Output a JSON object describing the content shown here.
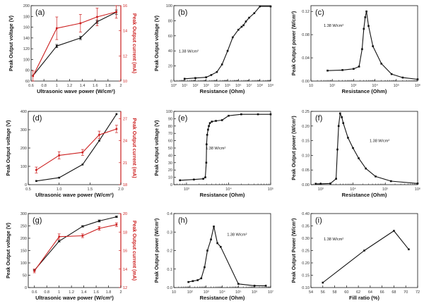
{
  "colors": {
    "black": "#111111",
    "red": "#cc1f1f"
  },
  "chart_data": [
    {
      "id": "a",
      "panel_label": "(a)",
      "type": "line",
      "xlabel": "Ultrasonic wave power (W/cm²)",
      "ylabel": "Peak Output voltage (V)",
      "ylabel_right": "Peak Output current (mA)",
      "xlim": [
        0.6,
        2.0
      ],
      "ylim": [
        60,
        200
      ],
      "ylim_right": [
        10,
        16
      ],
      "xticks": [
        0.6,
        0.8,
        1.0,
        1.2,
        1.4,
        1.6,
        1.8,
        2.0
      ],
      "yticks": [
        60,
        80,
        100,
        120,
        140,
        160,
        180,
        200
      ],
      "yticks_right": [
        10,
        12,
        14,
        16
      ],
      "series": [
        {
          "axis": "left",
          "color": "black",
          "x": [
            0.63,
            1.0,
            1.37,
            1.63,
            1.93
          ],
          "y": [
            70,
            125,
            140,
            170,
            188
          ],
          "err": [
            0,
            3,
            3,
            3,
            4
          ]
        },
        {
          "axis": "right",
          "color": "red",
          "x": [
            0.63,
            1.0,
            1.37,
            1.63,
            1.93
          ],
          "y": [
            10.4,
            14.2,
            14.6,
            15.1,
            15.5
          ],
          "err": [
            0.4,
            0.9,
            0.7,
            0.7,
            0.5
          ]
        }
      ]
    },
    {
      "id": "b",
      "panel_label": "(b)",
      "type": "line",
      "xscale": "log",
      "xlabel": "Resistance (Ohm)",
      "ylabel": "Peak Output voltage (V)",
      "annotation": "1.38 W/cm²",
      "xlim": [
        1,
        1000000000
      ],
      "ylim": [
        0,
        100
      ],
      "xticks": [
        1,
        10,
        100,
        1000,
        10000,
        100000,
        1000000,
        10000000,
        100000000,
        1000000000
      ],
      "xtick_labels": [
        "10⁰",
        "10¹",
        "10²",
        "10³",
        "10⁴",
        "10⁵",
        "10⁶",
        "10⁷",
        "10⁸",
        "10⁹"
      ],
      "yticks": [
        0,
        20,
        40,
        60,
        80,
        100
      ],
      "series": [
        {
          "color": "black",
          "x": [
            10,
            100,
            1000,
            3000,
            10000,
            30000,
            100000,
            300000,
            1000000,
            2000000,
            3000000,
            5000000,
            10000000,
            30000000,
            100000000,
            1000000000
          ],
          "y": [
            3,
            4,
            5,
            8,
            12,
            22,
            40,
            58,
            68,
            72,
            74,
            79,
            84,
            90,
            99,
            99
          ]
        }
      ]
    },
    {
      "id": "c",
      "panel_label": "(c)",
      "type": "line",
      "xscale": "log",
      "xlabel": "Resistance (Ohm)",
      "ylabel": "Peak Output power (W/cm²)",
      "annotation": "1.38 W/cm²",
      "xlim": [
        10,
        1000000
      ],
      "ylim": [
        0,
        0.13
      ],
      "xticks": [
        10,
        100,
        1000,
        10000,
        100000,
        1000000
      ],
      "xtick_labels": [
        "10",
        "10²",
        "10³",
        "10⁴",
        "10⁵",
        "10⁶"
      ],
      "yticks": [
        0,
        0.04,
        0.08,
        0.12
      ],
      "ytick_labels": [
        "0.00",
        "0.04",
        "0.08",
        "0.12"
      ],
      "series": [
        {
          "color": "black",
          "x": [
            60,
            300,
            1000,
            1800,
            2500,
            3000,
            3500,
            4000,
            5000,
            8000,
            20000,
            60000,
            200000,
            1000000
          ],
          "y": [
            0.018,
            0.019,
            0.021,
            0.025,
            0.055,
            0.09,
            0.11,
            0.12,
            0.095,
            0.06,
            0.03,
            0.012,
            0.006,
            0.003
          ]
        }
      ]
    },
    {
      "id": "d",
      "panel_label": "(d)",
      "type": "line",
      "xlabel": "Ultrasonic wave power (W/cm²)",
      "ylabel": "Peak Output voltage (V)",
      "ylabel_right": "Peak Output current (mA)",
      "xlim": [
        0.5,
        2.0
      ],
      "ylim": [
        0,
        400
      ],
      "ylim_right": [
        18,
        28
      ],
      "xticks": [
        0.5,
        1.0,
        1.5,
        2.0
      ],
      "xtick_labels": [
        "0.5",
        "1.0",
        "1.5",
        "2.0"
      ],
      "yticks": [
        0,
        100,
        200,
        300,
        400
      ],
      "yticks_right": [
        18,
        21,
        24,
        27
      ],
      "series": [
        {
          "axis": "left",
          "color": "black",
          "x": [
            0.63,
            1.0,
            1.38,
            1.65,
            1.93
          ],
          "y": [
            20,
            38,
            110,
            240,
            385
          ],
          "err": [
            0,
            0,
            0,
            0,
            0
          ]
        },
        {
          "axis": "right",
          "color": "red",
          "x": [
            0.63,
            1.0,
            1.38,
            1.65,
            1.93
          ],
          "y": [
            20.0,
            22.0,
            22.4,
            24.8,
            25.6
          ],
          "err": [
            0.4,
            0.5,
            0.4,
            0.5,
            0.5
          ]
        }
      ]
    },
    {
      "id": "e",
      "panel_label": "(e)",
      "type": "line",
      "xscale": "log",
      "xlabel": "Resistance (Ohm)",
      "ylabel": "Peak Output voltage (V)",
      "annotation": "1.38 W/cm²",
      "xlim": [
        500,
        100000
      ],
      "ylim": [
        0,
        100
      ],
      "xticks": [
        1000,
        10000,
        100000
      ],
      "xtick_labels": [
        "10³",
        "10⁴",
        "10⁵"
      ],
      "yticks": [
        0,
        10,
        20,
        30,
        40,
        50,
        60,
        70,
        80,
        90,
        100
      ],
      "series": [
        {
          "color": "black",
          "x": [
            700,
            1500,
            2500,
            2800,
            2950,
            3000,
            3100,
            3250,
            3400,
            3600,
            4000,
            5000,
            7000,
            10000,
            20000,
            50000,
            100000
          ],
          "y": [
            6,
            7,
            8,
            10,
            30,
            55,
            68,
            75,
            80,
            84,
            86,
            87,
            88,
            94,
            96,
            96,
            96
          ]
        }
      ]
    },
    {
      "id": "f",
      "panel_label": "(f)",
      "type": "line",
      "xscale": "log",
      "xlabel": "Resistance (Ohm)",
      "ylabel": "Peak Output power (W/cm²)",
      "annotation": "1.38 W/cm²",
      "xlim": [
        500,
        1000000
      ],
      "ylim": [
        0,
        0.25
      ],
      "xticks": [
        1000,
        10000,
        100000,
        1000000
      ],
      "xtick_labels": [
        "10³",
        "10⁴",
        "10⁵",
        "10⁶"
      ],
      "yticks": [
        0,
        0.05,
        0.1,
        0.15,
        0.2,
        0.25
      ],
      "ytick_labels": [
        "0.00",
        "0.05",
        "0.10",
        "0.15",
        "0.20",
        "0.25"
      ],
      "series": [
        {
          "color": "black",
          "x": [
            700,
            1000,
            2000,
            3000,
            3300,
            3600,
            4000,
            4500,
            5000,
            7000,
            10000,
            15000,
            25000,
            50000,
            150000,
            1000000
          ],
          "y": [
            0.003,
            0.003,
            0.004,
            0.02,
            0.12,
            0.2,
            0.243,
            0.23,
            0.21,
            0.16,
            0.125,
            0.09,
            0.055,
            0.028,
            0.012,
            0.004
          ]
        }
      ]
    },
    {
      "id": "g",
      "panel_label": "(g)",
      "type": "line",
      "xlabel": "Ultrasonic wave power (W/cm²)",
      "ylabel": "Peak Output voltage (V)",
      "ylabel_right": "Peak Output current (mA)",
      "xlim": [
        0.5,
        2.0
      ],
      "ylim": [
        0,
        300
      ],
      "ylim_right": [
        12,
        20
      ],
      "xticks": [
        0.6,
        0.8,
        1.0,
        1.2,
        1.4,
        1.6,
        1.8,
        2.0
      ],
      "yticks": [
        0,
        50,
        100,
        150,
        200,
        250,
        300
      ],
      "yticks_right": [
        12,
        14,
        16,
        18,
        20
      ],
      "series": [
        {
          "axis": "left",
          "color": "black",
          "x": [
            0.6,
            1.0,
            1.38,
            1.65,
            1.93
          ],
          "y": [
            70,
            188,
            248,
            270,
            287
          ],
          "err": [
            2,
            3,
            3,
            4,
            3
          ]
        },
        {
          "axis": "right",
          "color": "red",
          "x": [
            0.6,
            1.0,
            1.38,
            1.65,
            1.93
          ],
          "y": [
            13.8,
            17.5,
            17.6,
            18.4,
            18.8
          ],
          "err": [
            0.2,
            0.3,
            0.2,
            0.2,
            0.2
          ]
        }
      ]
    },
    {
      "id": "h",
      "panel_label": "(h)",
      "type": "line",
      "xscale": "log",
      "xlabel": "Resistance (Ohm)",
      "ylabel": "Peak Output power (W/cm²)",
      "annotation": "1.38 W/cm²",
      "xlim": [
        10,
        10000000
      ],
      "ylim": [
        0,
        0.4
      ],
      "xticks": [
        10,
        100,
        1000,
        10000,
        100000,
        1000000,
        10000000
      ],
      "xtick_labels": [
        "10",
        "10²",
        "10³",
        "10⁴",
        "10⁵",
        "10⁶",
        "10⁷"
      ],
      "yticks": [
        0,
        0.1,
        0.2,
        0.3,
        0.4
      ],
      "ytick_labels": [
        "0.0",
        "0.1",
        "0.2",
        "0.3",
        "0.4"
      ],
      "series": [
        {
          "color": "black",
          "x": [
            80,
            150,
            300,
            500,
            800,
            1200,
            2000,
            3000,
            5000,
            8000,
            100000,
            1000000,
            5000000
          ],
          "y": [
            0.03,
            0.035,
            0.04,
            0.05,
            0.11,
            0.2,
            0.26,
            0.33,
            0.24,
            0.22,
            0.02,
            0.01,
            0.01
          ]
        }
      ]
    },
    {
      "id": "i",
      "panel_label": "(i)",
      "type": "line",
      "xlabel": "Fill ratio (%)",
      "ylabel": "Peak Output Power (W/cm²)",
      "annotation": "1.38 W/cm²",
      "xlim": [
        54,
        72
      ],
      "ylim": [
        0.1,
        0.4
      ],
      "xticks": [
        54,
        56,
        58,
        60,
        62,
        64,
        66,
        68,
        70,
        72
      ],
      "yticks": [
        0.1,
        0.15,
        0.2,
        0.25,
        0.3,
        0.35,
        0.4
      ],
      "ytick_labels": [
        "0.10",
        "0.15",
        "0.20",
        "0.25",
        "0.30",
        "0.35",
        "0.40"
      ],
      "series": [
        {
          "color": "black",
          "x": [
            56,
            63,
            68,
            70.5
          ],
          "y": [
            0.12,
            0.25,
            0.33,
            0.255
          ]
        }
      ]
    }
  ]
}
